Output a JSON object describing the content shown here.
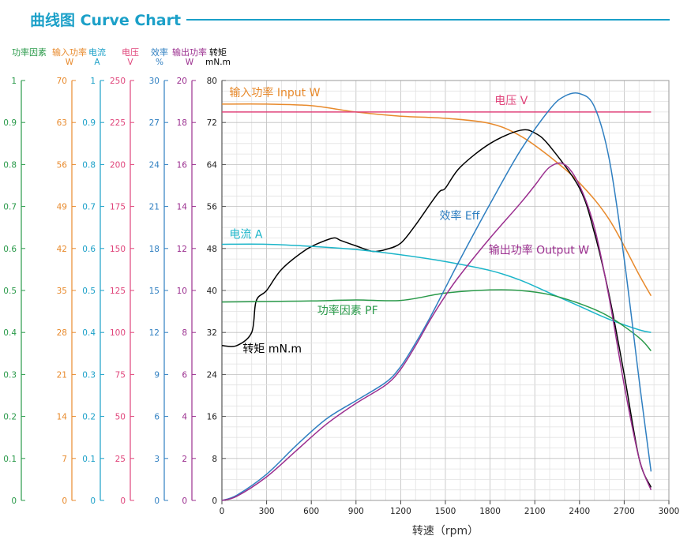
{
  "header": {
    "title": "曲线图 Curve Chart",
    "accent": "#1ba0c8"
  },
  "chart_data": {
    "type": "line",
    "title": "曲线图 Curve Chart",
    "xlabel": "转速（rpm）",
    "xlim": [
      0,
      3000
    ],
    "x_ticks": [
      0,
      300,
      600,
      900,
      1200,
      1500,
      1800,
      2100,
      2400,
      2700,
      3000
    ],
    "grid": true,
    "axes": [
      {
        "id": "pf",
        "label": "功率因素",
        "unit": "",
        "color": "#2a9a4a",
        "range": [
          0,
          1
        ],
        "ticks": [
          "0",
          "0.1",
          "0.2",
          "0.3",
          "0.4",
          "0.5",
          "0.6",
          "0.7",
          "0.8",
          "0.9",
          "1"
        ]
      },
      {
        "id": "pin",
        "label": "输入功率",
        "unit": "W",
        "color": "#e88a2c",
        "range": [
          0,
          70
        ],
        "ticks": [
          "0",
          "7",
          "14",
          "21",
          "28",
          "35",
          "42",
          "49",
          "56",
          "63",
          "70"
        ]
      },
      {
        "id": "cur",
        "label": "电流",
        "unit": "A",
        "color": "#1ba0c8",
        "range": [
          0,
          1
        ],
        "ticks": [
          "0",
          "0.1",
          "0.2",
          "0.3",
          "0.4",
          "0.5",
          "0.6",
          "0.7",
          "0.8",
          "0.9",
          "1"
        ]
      },
      {
        "id": "vol",
        "label": "电压",
        "unit": "V",
        "color": "#e0457b",
        "range": [
          0,
          250
        ],
        "ticks": [
          "0",
          "25",
          "50",
          "75",
          "100",
          "125",
          "150",
          "175",
          "200",
          "225",
          "250"
        ]
      },
      {
        "id": "eff",
        "label": "效率",
        "unit": "%",
        "color": "#2f7fc1",
        "range": [
          0,
          30
        ],
        "ticks": [
          "0",
          "3",
          "6",
          "9",
          "12",
          "15",
          "18",
          "21",
          "24",
          "27",
          "30"
        ]
      },
      {
        "id": "pout",
        "label": "输出功率",
        "unit": "W",
        "color": "#9b2f8f",
        "range": [
          0,
          20
        ],
        "ticks": [
          "0",
          "2",
          "4",
          "6",
          "8",
          "10",
          "12",
          "14",
          "16",
          "18",
          "20"
        ]
      },
      {
        "id": "trq",
        "label": "转矩",
        "unit": "mN.m",
        "color": "#000000",
        "range": [
          0,
          80
        ],
        "ticks": [
          "0",
          "8",
          "16",
          "24",
          "32",
          "40",
          "48",
          "56",
          "64",
          "72",
          "80"
        ]
      }
    ],
    "series": [
      {
        "name": "输入功率 Input W",
        "axis_scale": "0-80",
        "color": "#e88a2c",
        "x": [
          0,
          300,
          600,
          900,
          1200,
          1500,
          1800,
          2000,
          2200,
          2400,
          2600,
          2800,
          2880
        ],
        "y": [
          75.5,
          75.5,
          75.2,
          74,
          73.2,
          72.8,
          71.8,
          69.5,
          65.5,
          60.5,
          53.5,
          43,
          39
        ]
      },
      {
        "name": "电压 V",
        "axis_scale": "0-80",
        "color": "#e0457b",
        "x": [
          0,
          2880
        ],
        "y": [
          74,
          74
        ]
      },
      {
        "name": "转矩 mN.m",
        "axis_scale": "0-80",
        "color": "#000000",
        "x": [
          0,
          100,
          200,
          230,
          300,
          400,
          550,
          650,
          750,
          800,
          900,
          1000,
          1050,
          1100,
          1200,
          1300,
          1450,
          1500,
          1600,
          1800,
          2000,
          2100,
          2200,
          2400,
          2500,
          2600,
          2700,
          2800,
          2880
        ],
        "y": [
          29.5,
          29.5,
          32,
          38,
          40,
          44,
          47.5,
          49,
          50,
          49.5,
          48.5,
          47.5,
          47.5,
          47.8,
          49,
          52.5,
          58.5,
          59.5,
          63.5,
          68,
          70.5,
          70,
          67.5,
          59.5,
          51,
          39,
          24,
          8,
          2.5
        ]
      },
      {
        "name": "电流 A",
        "axis_scale": "0-80",
        "color": "#1bb5c9",
        "x": [
          0,
          300,
          600,
          900,
          1200,
          1500,
          1800,
          2000,
          2200,
          2400,
          2600,
          2800,
          2880
        ],
        "y": [
          48.8,
          48.8,
          48.4,
          47.8,
          46.8,
          45.5,
          43.8,
          42,
          39.5,
          37,
          34.5,
          32.5,
          32
        ]
      },
      {
        "name": "功率因素 PF",
        "axis_scale": "0-80",
        "color": "#2a9a4a",
        "x": [
          0,
          300,
          600,
          900,
          1200,
          1500,
          1800,
          2000,
          2200,
          2400,
          2600,
          2800,
          2880
        ],
        "y": [
          37.8,
          37.9,
          38,
          38.2,
          38.1,
          39.5,
          40.1,
          40,
          39.2,
          37.5,
          35,
          31,
          28.5
        ]
      },
      {
        "name": "效率 Eff",
        "axis_scale": "0-80",
        "color": "#2f7fc1",
        "x": [
          0,
          100,
          300,
          500,
          700,
          900,
          1100,
          1200,
          1300,
          1400,
          1500,
          1600,
          1800,
          2000,
          2200,
          2300,
          2400,
          2500,
          2600,
          2700,
          2800,
          2880
        ],
        "y": [
          0,
          1,
          5,
          10.5,
          15.5,
          19,
          22.5,
          25.5,
          30,
          35,
          40.5,
          46,
          56.5,
          66.5,
          74.5,
          77,
          77.5,
          75,
          65,
          46,
          23,
          5.5
        ]
      },
      {
        "name": "输出功率 Output W",
        "axis_scale": "0-80",
        "color": "#9b2f8f",
        "x": [
          0,
          100,
          300,
          500,
          700,
          900,
          1100,
          1200,
          1300,
          1400,
          1500,
          1600,
          1800,
          2000,
          2100,
          2200,
          2300,
          2400,
          2500,
          2600,
          2700,
          2800,
          2880
        ],
        "y": [
          0,
          0.8,
          4.5,
          9.5,
          14.5,
          18.5,
          22,
          25,
          29.5,
          34.5,
          39,
          43,
          50,
          56.5,
          60,
          63.5,
          64,
          60,
          52,
          38.5,
          22,
          8,
          2
        ]
      }
    ],
    "annotations": [
      {
        "text": "输入功率 Input W",
        "x": 50,
        "y": 77,
        "color": "#e88a2c"
      },
      {
        "text": "电压 V",
        "x": 1830,
        "y": 75.5,
        "color": "#e0457b"
      },
      {
        "text": "效率 Eff",
        "x": 1460,
        "y": 53.5,
        "color": "#2f7fc1"
      },
      {
        "text": "电流 A",
        "x": 50,
        "y": 50,
        "color": "#1bb5c9"
      },
      {
        "text": "输出功率 Output W",
        "x": 1790,
        "y": 47,
        "color": "#9b2f8f"
      },
      {
        "text": "功率因素 PF",
        "x": 640,
        "y": 35.5,
        "color": "#2a9a4a"
      },
      {
        "text": "转矩 mN.m",
        "x": 140,
        "y": 28.2,
        "color": "#000000"
      }
    ]
  }
}
